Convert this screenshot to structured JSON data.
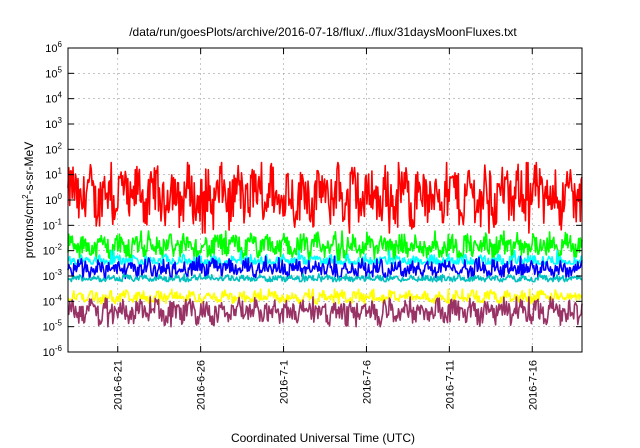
{
  "chart_data": {
    "type": "line",
    "title": "/data/run/goesPlots/archive/2016-07-18/flux/../flux/31daysMoonFluxes.txt",
    "xlabel": "Coordinated Universal Time (UTC)",
    "ylabel_base": "protons/cm",
    "ylabel_sup": "2",
    "ylabel_rest": "-s-sr-MeV",
    "yscale": "log",
    "ylim": [
      1e-06,
      1000000.0
    ],
    "xlim": [
      "2016-06-18",
      "2016-07-19"
    ],
    "y_ticks": [
      {
        "base": "10",
        "exp": "-6",
        "value": 1e-06
      },
      {
        "base": "10",
        "exp": "-5",
        "value": 1e-05
      },
      {
        "base": "10",
        "exp": "-4",
        "value": 0.0001
      },
      {
        "base": "10",
        "exp": "-3",
        "value": 0.001
      },
      {
        "base": "10",
        "exp": "-2",
        "value": 0.01
      },
      {
        "base": "10",
        "exp": "-1",
        "value": 0.1
      },
      {
        "base": "10",
        "exp": "0",
        "value": 1
      },
      {
        "base": "10",
        "exp": "1",
        "value": 10
      },
      {
        "base": "10",
        "exp": "2",
        "value": 100
      },
      {
        "base": "10",
        "exp": "3",
        "value": 1000
      },
      {
        "base": "10",
        "exp": "4",
        "value": 10000
      },
      {
        "base": "10",
        "exp": "5",
        "value": 100000
      },
      {
        "base": "10",
        "exp": "6",
        "value": 1000000
      }
    ],
    "x_ticks": [
      {
        "label": "2016-6-21",
        "date": "2016-06-21"
      },
      {
        "label": "2016-6-26",
        "date": "2016-06-26"
      },
      {
        "label": "2016-7-1",
        "date": "2016-07-01"
      },
      {
        "label": "2016-7-6",
        "date": "2016-07-06"
      },
      {
        "label": "2016-7-11",
        "date": "2016-07-11"
      },
      {
        "label": "2016-7-16",
        "date": "2016-07-16"
      }
    ],
    "grid": true,
    "series": [
      {
        "color": "#ff0000",
        "typical": 1.5,
        "low": 0.05,
        "high": 30
      },
      {
        "color": "#00ff00",
        "typical": 0.015,
        "low": 0.004,
        "high": 0.06
      },
      {
        "color": "#00ffff",
        "typical": 0.004,
        "low": 0.003,
        "high": 0.01
      },
      {
        "color": "#0000ff",
        "typical": 0.002,
        "low": 0.0008,
        "high": 0.006
      },
      {
        "color": "#00c0c0",
        "typical": 0.0008,
        "low": 0.0006,
        "high": 0.0012
      },
      {
        "color": "#ffff00",
        "typical": 0.00015,
        "low": 8e-05,
        "high": 0.0003
      },
      {
        "color": "#993366",
        "typical": 4e-05,
        "low": 1e-05,
        "high": 0.00015
      }
    ]
  }
}
